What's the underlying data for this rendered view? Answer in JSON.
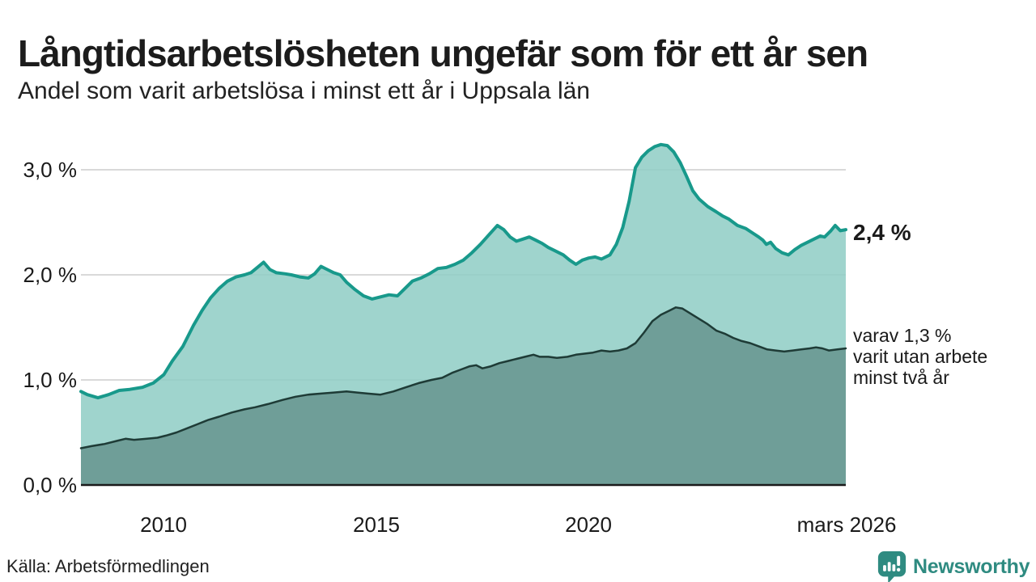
{
  "header": {
    "title": "Långtidsarbetslösheten ungefär som för ett år sen",
    "subtitle": "Andel som varit arbetslösa i minst ett år i Uppsala län"
  },
  "source": {
    "label": "Källa: Arbetsförmedlingen"
  },
  "branding": {
    "name": "Newsworthy",
    "icon": "newsworthy-pin-barchart-icon",
    "color": "#2f8b81"
  },
  "chart_data": {
    "type": "area",
    "title": "Långtidsarbetslösheten ungefär som för ett år sen",
    "subtitle": "Andel som varit arbetslösa i minst ett år i Uppsala län",
    "gridlines": "horizontal",
    "grid_color": "#d9d9d9",
    "baseline_color": "#1a1a1a",
    "x_axis": {
      "domain": [
        2008.05,
        2026.05
      ],
      "range": [
        100,
        1045
      ],
      "ticks": [
        {
          "label": "2010",
          "value": 2010
        },
        {
          "label": "2015",
          "value": 2015
        },
        {
          "label": "2020",
          "value": 2020
        },
        {
          "label": "mars 2026",
          "value": 2026.05
        }
      ]
    },
    "y_axis": {
      "unit": "%",
      "domain": [
        0,
        3
      ],
      "range": [
        600,
        210
      ],
      "ticks": [
        {
          "label": "0,0 %",
          "value": 0
        },
        {
          "label": "1,0 %",
          "value": 1
        },
        {
          "label": "2,0 %",
          "value": 2
        },
        {
          "label": "3,0 %",
          "value": 3
        }
      ]
    },
    "annotations": [
      {
        "text": "2,4 %",
        "bold": true
      },
      {
        "lines": [
          "varav 1,3 %",
          "varit utan arbete",
          "minst två år"
        ]
      }
    ],
    "series": [
      {
        "name": "Andel arbetslösa minst ett år",
        "end_value_label": "2,4 %",
        "stroke": "#18998b",
        "stroke_width": 4,
        "fill": "#8ecdc4",
        "fill_opacity": 0.85,
        "points": [
          [
            2008.05,
            0.89
          ],
          [
            2008.2,
            0.86
          ],
          [
            2008.45,
            0.83
          ],
          [
            2008.7,
            0.86
          ],
          [
            2008.95,
            0.9
          ],
          [
            2009.2,
            0.91
          ],
          [
            2009.5,
            0.93
          ],
          [
            2009.75,
            0.97
          ],
          [
            2010.0,
            1.05
          ],
          [
            2010.2,
            1.18
          ],
          [
            2010.45,
            1.32
          ],
          [
            2010.7,
            1.52
          ],
          [
            2010.9,
            1.66
          ],
          [
            2011.1,
            1.78
          ],
          [
            2011.3,
            1.87
          ],
          [
            2011.5,
            1.94
          ],
          [
            2011.7,
            1.98
          ],
          [
            2011.9,
            2.0
          ],
          [
            2012.05,
            2.02
          ],
          [
            2012.2,
            2.07
          ],
          [
            2012.35,
            2.12
          ],
          [
            2012.5,
            2.05
          ],
          [
            2012.65,
            2.02
          ],
          [
            2012.85,
            2.01
          ],
          [
            2013.0,
            2.0
          ],
          [
            2013.2,
            1.98
          ],
          [
            2013.4,
            1.97
          ],
          [
            2013.55,
            2.01
          ],
          [
            2013.7,
            2.08
          ],
          [
            2013.85,
            2.05
          ],
          [
            2014.0,
            2.02
          ],
          [
            2014.15,
            2.0
          ],
          [
            2014.3,
            1.93
          ],
          [
            2014.5,
            1.86
          ],
          [
            2014.7,
            1.8
          ],
          [
            2014.9,
            1.77
          ],
          [
            2015.1,
            1.79
          ],
          [
            2015.3,
            1.81
          ],
          [
            2015.5,
            1.8
          ],
          [
            2015.65,
            1.86
          ],
          [
            2015.85,
            1.94
          ],
          [
            2016.05,
            1.97
          ],
          [
            2016.25,
            2.01
          ],
          [
            2016.45,
            2.06
          ],
          [
            2016.65,
            2.07
          ],
          [
            2016.85,
            2.1
          ],
          [
            2017.05,
            2.14
          ],
          [
            2017.25,
            2.21
          ],
          [
            2017.45,
            2.29
          ],
          [
            2017.65,
            2.38
          ],
          [
            2017.85,
            2.47
          ],
          [
            2018.0,
            2.43
          ],
          [
            2018.15,
            2.36
          ],
          [
            2018.3,
            2.32
          ],
          [
            2018.45,
            2.34
          ],
          [
            2018.6,
            2.36
          ],
          [
            2018.75,
            2.33
          ],
          [
            2018.9,
            2.3
          ],
          [
            2019.05,
            2.26
          ],
          [
            2019.2,
            2.23
          ],
          [
            2019.4,
            2.19
          ],
          [
            2019.55,
            2.14
          ],
          [
            2019.7,
            2.1
          ],
          [
            2019.85,
            2.14
          ],
          [
            2020.0,
            2.16
          ],
          [
            2020.15,
            2.17
          ],
          [
            2020.3,
            2.15
          ],
          [
            2020.5,
            2.19
          ],
          [
            2020.65,
            2.29
          ],
          [
            2020.8,
            2.45
          ],
          [
            2020.95,
            2.7
          ],
          [
            2021.1,
            3.02
          ],
          [
            2021.25,
            3.12
          ],
          [
            2021.4,
            3.18
          ],
          [
            2021.55,
            3.22
          ],
          [
            2021.7,
            3.24
          ],
          [
            2021.85,
            3.23
          ],
          [
            2022.0,
            3.17
          ],
          [
            2022.15,
            3.07
          ],
          [
            2022.3,
            2.94
          ],
          [
            2022.45,
            2.8
          ],
          [
            2022.6,
            2.72
          ],
          [
            2022.8,
            2.65
          ],
          [
            2023.0,
            2.6
          ],
          [
            2023.15,
            2.56
          ],
          [
            2023.3,
            2.53
          ],
          [
            2023.5,
            2.47
          ],
          [
            2023.7,
            2.44
          ],
          [
            2023.85,
            2.4
          ],
          [
            2024.0,
            2.36
          ],
          [
            2024.1,
            2.33
          ],
          [
            2024.18,
            2.29
          ],
          [
            2024.28,
            2.31
          ],
          [
            2024.4,
            2.25
          ],
          [
            2024.55,
            2.21
          ],
          [
            2024.7,
            2.19
          ],
          [
            2024.85,
            2.24
          ],
          [
            2025.0,
            2.28
          ],
          [
            2025.15,
            2.31
          ],
          [
            2025.3,
            2.34
          ],
          [
            2025.45,
            2.37
          ],
          [
            2025.55,
            2.36
          ],
          [
            2025.7,
            2.42
          ],
          [
            2025.8,
            2.47
          ],
          [
            2025.92,
            2.42
          ],
          [
            2026.05,
            2.43
          ]
        ]
      },
      {
        "name": "varav utan arbete minst två år",
        "end_value_label": "1,3 %",
        "stroke": "#1e3b36",
        "stroke_width": 2.5,
        "fill": "#6f9e98",
        "fill_opacity": 1,
        "points": [
          [
            2008.05,
            0.35
          ],
          [
            2008.3,
            0.37
          ],
          [
            2008.6,
            0.39
          ],
          [
            2008.9,
            0.42
          ],
          [
            2009.1,
            0.44
          ],
          [
            2009.3,
            0.43
          ],
          [
            2009.6,
            0.44
          ],
          [
            2009.85,
            0.45
          ],
          [
            2010.05,
            0.47
          ],
          [
            2010.3,
            0.5
          ],
          [
            2010.55,
            0.54
          ],
          [
            2010.8,
            0.58
          ],
          [
            2011.05,
            0.62
          ],
          [
            2011.3,
            0.65
          ],
          [
            2011.6,
            0.69
          ],
          [
            2011.9,
            0.72
          ],
          [
            2012.15,
            0.74
          ],
          [
            2012.45,
            0.77
          ],
          [
            2012.8,
            0.81
          ],
          [
            2013.1,
            0.84
          ],
          [
            2013.4,
            0.86
          ],
          [
            2013.7,
            0.87
          ],
          [
            2014.0,
            0.88
          ],
          [
            2014.3,
            0.89
          ],
          [
            2014.55,
            0.88
          ],
          [
            2014.8,
            0.87
          ],
          [
            2015.1,
            0.86
          ],
          [
            2015.4,
            0.89
          ],
          [
            2015.7,
            0.93
          ],
          [
            2016.0,
            0.97
          ],
          [
            2016.3,
            1.0
          ],
          [
            2016.55,
            1.02
          ],
          [
            2016.8,
            1.07
          ],
          [
            2017.0,
            1.1
          ],
          [
            2017.2,
            1.13
          ],
          [
            2017.35,
            1.14
          ],
          [
            2017.5,
            1.11
          ],
          [
            2017.7,
            1.13
          ],
          [
            2017.9,
            1.16
          ],
          [
            2018.1,
            1.18
          ],
          [
            2018.3,
            1.2
          ],
          [
            2018.5,
            1.22
          ],
          [
            2018.7,
            1.24
          ],
          [
            2018.85,
            1.22
          ],
          [
            2019.05,
            1.22
          ],
          [
            2019.25,
            1.21
          ],
          [
            2019.5,
            1.22
          ],
          [
            2019.7,
            1.24
          ],
          [
            2019.9,
            1.25
          ],
          [
            2020.1,
            1.26
          ],
          [
            2020.3,
            1.28
          ],
          [
            2020.5,
            1.27
          ],
          [
            2020.7,
            1.28
          ],
          [
            2020.9,
            1.3
          ],
          [
            2021.1,
            1.35
          ],
          [
            2021.3,
            1.45
          ],
          [
            2021.5,
            1.56
          ],
          [
            2021.7,
            1.62
          ],
          [
            2021.9,
            1.66
          ],
          [
            2022.05,
            1.69
          ],
          [
            2022.2,
            1.68
          ],
          [
            2022.4,
            1.63
          ],
          [
            2022.6,
            1.58
          ],
          [
            2022.8,
            1.53
          ],
          [
            2023.0,
            1.47
          ],
          [
            2023.2,
            1.44
          ],
          [
            2023.4,
            1.4
          ],
          [
            2023.6,
            1.37
          ],
          [
            2023.8,
            1.35
          ],
          [
            2024.0,
            1.32
          ],
          [
            2024.2,
            1.29
          ],
          [
            2024.4,
            1.28
          ],
          [
            2024.6,
            1.27
          ],
          [
            2024.8,
            1.28
          ],
          [
            2025.0,
            1.29
          ],
          [
            2025.2,
            1.3
          ],
          [
            2025.35,
            1.31
          ],
          [
            2025.5,
            1.3
          ],
          [
            2025.65,
            1.28
          ],
          [
            2025.85,
            1.29
          ],
          [
            2026.05,
            1.3
          ]
        ]
      }
    ]
  }
}
